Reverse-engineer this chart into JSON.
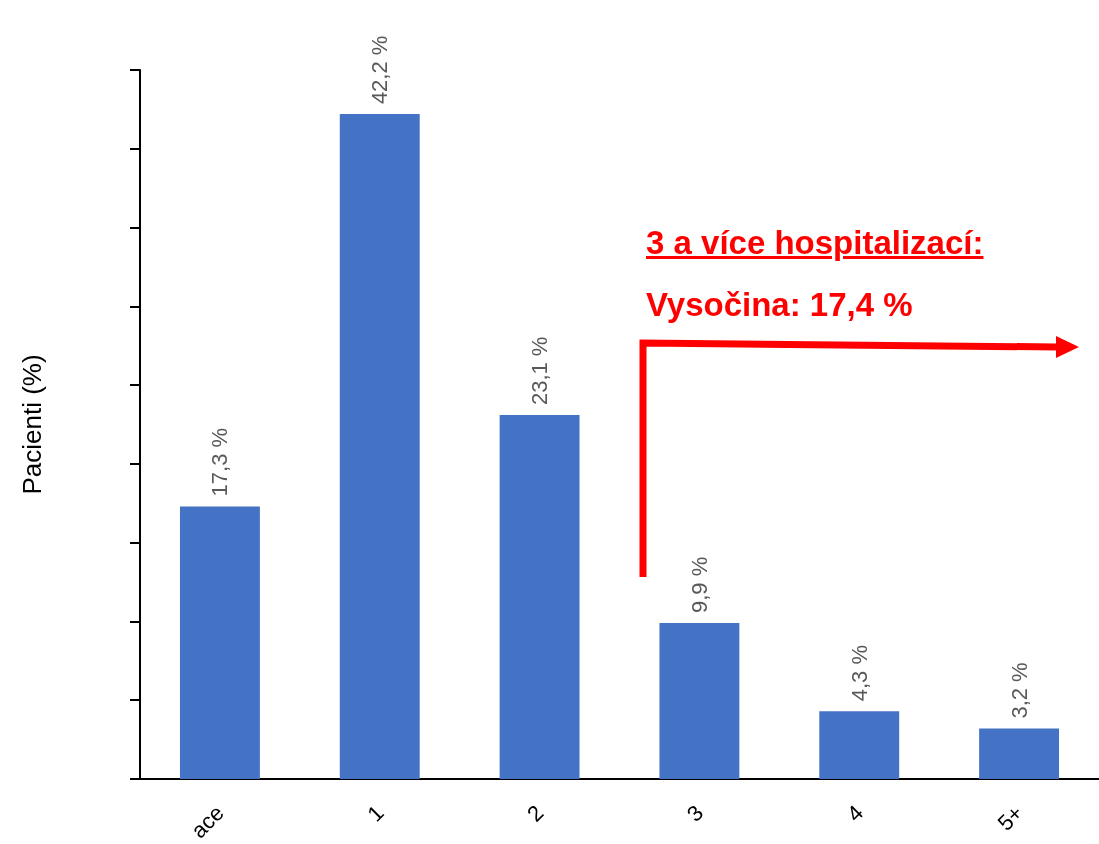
{
  "chart_data": {
    "type": "bar",
    "ylabel": "Pacienti (%)",
    "categories": [
      "ace",
      "1",
      "2",
      "3",
      "4",
      "5+"
    ],
    "values": [
      17.3,
      42.2,
      23.1,
      9.9,
      4.3,
      3.2
    ],
    "value_labels": [
      "17,3 %",
      "42,2 %",
      "23,1 %",
      "9,9 %",
      "4,3 %",
      "3,2 %"
    ],
    "color": "#4472c4",
    "ylim": [
      0,
      45
    ],
    "yticks": [
      {
        "value": 0,
        "label": null
      },
      {
        "value": 5,
        "label": null
      },
      {
        "value": 10,
        "label": null
      },
      {
        "value": 15,
        "label": null
      },
      {
        "value": 20,
        "label": null
      },
      {
        "value": 25,
        "label": null
      },
      {
        "value": 30,
        "label": null
      },
      {
        "value": 35,
        "label": null
      },
      {
        "value": 40,
        "label": null
      },
      {
        "value": 45,
        "label": null
      }
    ],
    "tick_labels": "x",
    "annotations": [
      "3 a více hospitalizací:",
      "Vysočina: 17,4 %"
    ]
  }
}
